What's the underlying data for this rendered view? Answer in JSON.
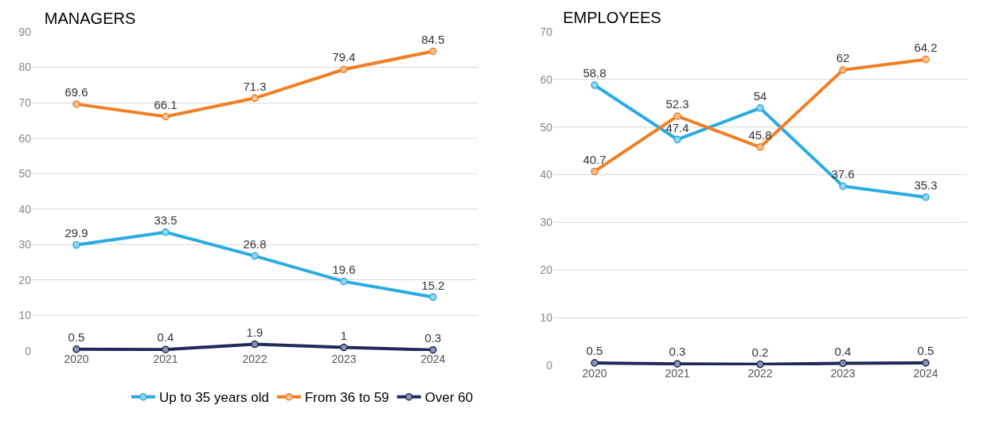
{
  "chart_data": [
    {
      "type": "line",
      "title": "MANAGERS",
      "categories": [
        "2020",
        "2021",
        "2022",
        "2023",
        "2024"
      ],
      "series": [
        {
          "name": "Up to 35 years old",
          "color": "#29abe2",
          "values": [
            29.9,
            33.5,
            26.8,
            19.6,
            15.2
          ]
        },
        {
          "name": "From 36 to 59",
          "color": "#f07f23",
          "values": [
            69.6,
            66.1,
            71.3,
            79.4,
            84.5
          ]
        },
        {
          "name": "Over 60",
          "color": "#1f2a5a",
          "values": [
            0.5,
            0.4,
            1.9,
            1,
            0.3
          ]
        }
      ],
      "ylim": [
        0,
        90
      ],
      "yticks": [
        0,
        10,
        20,
        30,
        40,
        50,
        60,
        70,
        80,
        90
      ],
      "grid": "y",
      "legend": "bottom",
      "marker": "circle",
      "line_style": "solid",
      "data_labels": true
    },
    {
      "type": "line",
      "title": "EMPLOYEES",
      "categories": [
        "2020",
        "2021",
        "2022",
        "2023",
        "2024"
      ],
      "series": [
        {
          "color": "#29abe2",
          "values": [
            58.8,
            47.4,
            54,
            37.6,
            35.3
          ]
        },
        {
          "color": "#f07f23",
          "values": [
            40.7,
            52.3,
            45.8,
            62,
            64.2
          ]
        },
        {
          "color": "#1f2a5a",
          "values": [
            0.5,
            0.3,
            0.2,
            0.4,
            0.5
          ]
        }
      ],
      "ylim": [
        0,
        70
      ],
      "yticks": [
        0,
        10,
        20,
        30,
        40,
        50,
        60,
        70
      ],
      "grid": "y",
      "marker": "circle",
      "line_style": "solid",
      "data_labels": true
    }
  ]
}
